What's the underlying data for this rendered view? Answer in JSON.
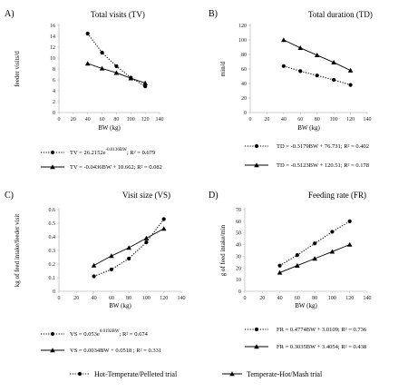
{
  "chart_data": [
    {
      "type": "scatter",
      "panel": "A)",
      "title": "Total visits (TV)",
      "xlabel": "BW (kg)",
      "ylabel": "feeder visits/d",
      "xlim": [
        0,
        140
      ],
      "xticks": [
        0,
        20,
        40,
        60,
        80,
        100,
        120,
        140
      ],
      "ylim": [
        0,
        16
      ],
      "yticks": [
        0,
        2,
        4,
        6,
        8,
        10,
        12,
        14,
        16
      ],
      "x": [
        40,
        60,
        80,
        100,
        120
      ],
      "series": [
        {
          "name": "Hot-Temperate/Pelleted trial",
          "marker": "circle",
          "line": "dotted",
          "values": [
            14.5,
            11.0,
            8.5,
            6.4,
            4.8
          ],
          "equation": {
            "text": "TV = 26.2152e",
            "sup": "-0.0136BW",
            "r2": "; R² = 0.679"
          }
        },
        {
          "name": "Temperate-Hot/Mash trial",
          "marker": "triangle",
          "line": "solid",
          "values": [
            9.0,
            8.1,
            7.3,
            6.3,
            5.4
          ],
          "equation": {
            "text": "TV = -0.0436BW + 10.662; R² = 0.082",
            "sup": "",
            "r2": ""
          }
        }
      ]
    },
    {
      "type": "scatter",
      "panel": "B)",
      "title": "Total duration (TD)",
      "xlabel": "BW (kg)",
      "ylabel": "min/d",
      "xlim": [
        0,
        140
      ],
      "xticks": [
        0,
        20,
        40,
        60,
        80,
        100,
        120,
        140
      ],
      "ylim": [
        0,
        120
      ],
      "yticks": [
        0,
        20,
        40,
        60,
        80,
        100,
        120
      ],
      "x": [
        40,
        60,
        80,
        100,
        120
      ],
      "series": [
        {
          "name": "Hot-Temperate/Pelleted trial",
          "marker": "circle",
          "line": "dotted",
          "values": [
            64,
            57,
            51,
            45,
            38
          ],
          "equation": {
            "text": "TD = -0.3179BW + 76.731; R² = 0.402",
            "sup": "",
            "r2": ""
          }
        },
        {
          "name": "Temperate-Hot/Mash trial",
          "marker": "triangle",
          "line": "solid",
          "values": [
            100,
            89,
            79,
            69,
            58
          ],
          "equation": {
            "text": "TD = -0.5123BW + 120.51; R² = 0.178",
            "sup": "",
            "r2": ""
          }
        }
      ]
    },
    {
      "type": "scatter",
      "panel": "C)",
      "title": "Visit size (VS)",
      "xlabel": "BW (kg)",
      "ylabel": "kg of feed intake/feeder visit",
      "xlim": [
        0,
        140
      ],
      "xticks": [
        0,
        20,
        40,
        60,
        80,
        100,
        120,
        140
      ],
      "ylim": [
        0,
        0.6
      ],
      "yticks": [
        0,
        0.1,
        0.2,
        0.3,
        0.4,
        0.5,
        0.6
      ],
      "x": [
        40,
        60,
        80,
        100,
        120
      ],
      "series": [
        {
          "name": "Hot-Temperate/Pelleted trial",
          "marker": "circle",
          "line": "dotted",
          "values": [
            0.11,
            0.16,
            0.24,
            0.36,
            0.53
          ],
          "equation": {
            "text": "VS = 0.053e",
            "sup": "0.0192BW",
            "r2": "; R² = 0.674"
          }
        },
        {
          "name": "Temperate-Hot/Mash trial",
          "marker": "triangle",
          "line": "solid",
          "values": [
            0.19,
            0.26,
            0.32,
            0.39,
            0.46
          ],
          "equation": {
            "text": "VS = 0.0034BW + 0.0518 ; R² = 0.331",
            "sup": "",
            "r2": ""
          }
        }
      ]
    },
    {
      "type": "scatter",
      "panel": "D)",
      "title": "Feeding rate (FR)",
      "xlabel": "BW (kg)",
      "ylabel": "g of feed intake/min",
      "xlim": [
        0,
        140
      ],
      "xticks": [
        0,
        20,
        40,
        60,
        80,
        100,
        120,
        140
      ],
      "ylim": [
        0,
        70
      ],
      "yticks": [
        0,
        10,
        20,
        30,
        40,
        50,
        60,
        70
      ],
      "x": [
        40,
        60,
        80,
        100,
        120
      ],
      "series": [
        {
          "name": "Hot-Temperate/Pelleted trial",
          "marker": "circle",
          "line": "dotted",
          "values": [
            22,
            31,
            41,
            51,
            60
          ],
          "equation": {
            "text": "FR = 0.4774BW + 3.0109; R² = 0.736",
            "sup": "",
            "r2": ""
          }
        },
        {
          "name": "Temperate-Hot/Mash trial",
          "marker": "triangle",
          "line": "solid",
          "values": [
            16,
            22,
            28,
            34,
            40
          ],
          "equation": {
            "text": "FR = 0.3035BW + 3.4054; R² = 0.438",
            "sup": "",
            "r2": ""
          }
        }
      ]
    }
  ],
  "legend": [
    {
      "label": "Hot-Temperate/Pelleted trial",
      "marker": "circle",
      "line": "dotted"
    },
    {
      "label": "Temperate-Hot/Mash trial",
      "marker": "triangle",
      "line": "solid"
    }
  ]
}
